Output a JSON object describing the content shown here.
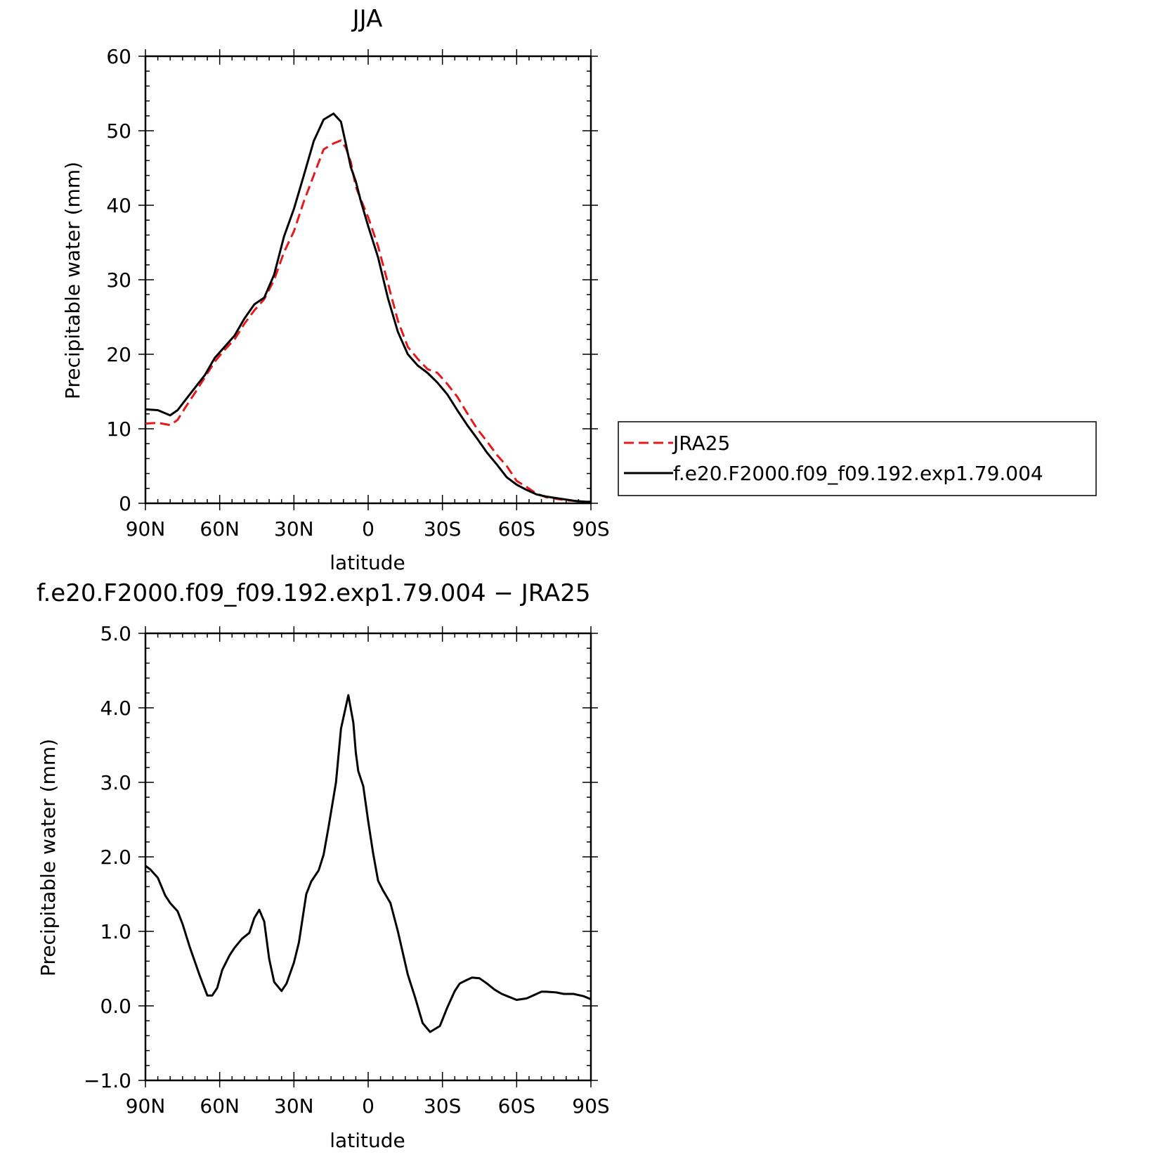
{
  "chart_data": [
    {
      "type": "line",
      "title": "JJA",
      "xlabel": "latitude",
      "ylabel": "Precipitable water (mm)",
      "xlim": [
        90,
        -90
      ],
      "ylim": [
        0,
        60
      ],
      "x_ticks": [
        90,
        60,
        30,
        0,
        -30,
        -60,
        -90
      ],
      "x_tick_labels": [
        "90N",
        "60N",
        "30N",
        "0",
        "30S",
        "60S",
        "90S"
      ],
      "y_ticks": [
        0,
        10,
        20,
        30,
        40,
        50,
        60
      ],
      "y_tick_labels": [
        "0",
        "10",
        "20",
        "30",
        "40",
        "50",
        "60"
      ],
      "legend_position": "right",
      "series": [
        {
          "name": "JRA25",
          "color": "#e41a1c",
          "dash": "dashed",
          "x": [
            90,
            85,
            80,
            77,
            74,
            70,
            66,
            62,
            58,
            54,
            50,
            46,
            42,
            38,
            34,
            30,
            26,
            22,
            18,
            14,
            11,
            9,
            7,
            5,
            3,
            0,
            -4,
            -8,
            -12,
            -16,
            -20,
            -24,
            -28,
            -32,
            -36,
            -40,
            -44,
            -48,
            -52,
            -56,
            -60,
            -64,
            -68,
            -72,
            -76,
            -80,
            -84,
            -88,
            -90
          ],
          "y": [
            10.7,
            10.8,
            10.5,
            11.2,
            12.8,
            14.8,
            16.9,
            19.0,
            20.6,
            22.0,
            24.1,
            25.9,
            27.4,
            30.0,
            33.7,
            36.5,
            40.5,
            44.0,
            47.5,
            48.3,
            48.7,
            47.7,
            45.8,
            42.5,
            40.8,
            38.4,
            34.5,
            29.5,
            24.5,
            21.0,
            19.4,
            18.0,
            17.5,
            16.0,
            14.3,
            12.1,
            10.0,
            8.3,
            6.5,
            5.0,
            3.0,
            2.2,
            1.3,
            0.8,
            0.6,
            0.4,
            0.3,
            0.2,
            0.2
          ]
        },
        {
          "name": "f.e20.F2000.f09_f09.192.exp1.79.004",
          "color": "#000000",
          "dash": "solid",
          "x": [
            90,
            85,
            80,
            77,
            74,
            70,
            66,
            62,
            58,
            54,
            50,
            46,
            42,
            38,
            34,
            30,
            26,
            22,
            18,
            14,
            11,
            9,
            7,
            5,
            3,
            0,
            -4,
            -8,
            -12,
            -16,
            -20,
            -24,
            -28,
            -32,
            -36,
            -40,
            -44,
            -48,
            -52,
            -56,
            -60,
            -64,
            -68,
            -72,
            -76,
            -80,
            -84,
            -88,
            -90
          ],
          "y": [
            12.6,
            12.5,
            11.8,
            12.5,
            13.8,
            15.5,
            17.2,
            19.5,
            21.0,
            22.5,
            24.8,
            26.7,
            27.6,
            30.7,
            35.8,
            39.5,
            44.0,
            48.6,
            51.5,
            52.3,
            51.2,
            48.2,
            45.1,
            43.2,
            40.6,
            37.2,
            33.0,
            27.5,
            23.0,
            20.0,
            18.5,
            17.5,
            16.2,
            14.6,
            12.5,
            10.5,
            8.7,
            6.8,
            5.2,
            3.5,
            2.5,
            1.8,
            1.2,
            0.9,
            0.7,
            0.5,
            0.3,
            0.2,
            0.2
          ]
        }
      ]
    },
    {
      "type": "line",
      "title": "f.e20.F2000.f09_f09.192.exp1.79.004 − JRA25",
      "xlabel": "latitude",
      "ylabel": "Precipitable water (mm)",
      "xlim": [
        90,
        -90
      ],
      "ylim": [
        -1.0,
        5.0
      ],
      "x_ticks": [
        90,
        60,
        30,
        0,
        -30,
        -60,
        -90
      ],
      "x_tick_labels": [
        "90N",
        "60N",
        "30N",
        "0",
        "30S",
        "60S",
        "90S"
      ],
      "y_ticks": [
        -1.0,
        0.0,
        1.0,
        2.0,
        3.0,
        4.0,
        5.0
      ],
      "y_tick_labels": [
        "−1.0",
        "0.0",
        "1.0",
        "2.0",
        "3.0",
        "4.0",
        "5.0"
      ],
      "series": [
        {
          "color": "#000000",
          "dash": "solid",
          "x": [
            90,
            88,
            85,
            82,
            80,
            77,
            75,
            72,
            68,
            65,
            63,
            61,
            59,
            56,
            54,
            51,
            48,
            46,
            44,
            42,
            40,
            38,
            35,
            33,
            30,
            28,
            25,
            23,
            20,
            18,
            16,
            13,
            11,
            8,
            6,
            5,
            4,
            2,
            0,
            -2,
            -4,
            -6,
            -9,
            -12,
            -16,
            -19,
            -22,
            -25,
            -29,
            -32,
            -35,
            -37,
            -40,
            -42,
            -45,
            -48,
            -51,
            -54,
            -57,
            -60,
            -64,
            -66,
            -70,
            -72,
            -76,
            -79,
            -83,
            -87,
            -90
          ],
          "y": [
            1.88,
            1.83,
            1.72,
            1.48,
            1.38,
            1.27,
            1.1,
            0.78,
            0.4,
            0.14,
            0.14,
            0.24,
            0.48,
            0.68,
            0.78,
            0.9,
            0.98,
            1.18,
            1.29,
            1.13,
            0.63,
            0.32,
            0.2,
            0.3,
            0.58,
            0.85,
            1.5,
            1.67,
            1.82,
            2.03,
            2.4,
            3.0,
            3.72,
            4.17,
            3.8,
            3.4,
            3.15,
            2.95,
            2.48,
            2.05,
            1.68,
            1.55,
            1.38,
            1.0,
            0.42,
            0.11,
            -0.23,
            -0.35,
            -0.27,
            -0.02,
            0.2,
            0.3,
            0.35,
            0.38,
            0.37,
            0.3,
            0.22,
            0.16,
            0.12,
            0.08,
            0.1,
            0.13,
            0.19,
            0.19,
            0.18,
            0.16,
            0.16,
            0.13,
            0.09
          ]
        }
      ]
    }
  ]
}
